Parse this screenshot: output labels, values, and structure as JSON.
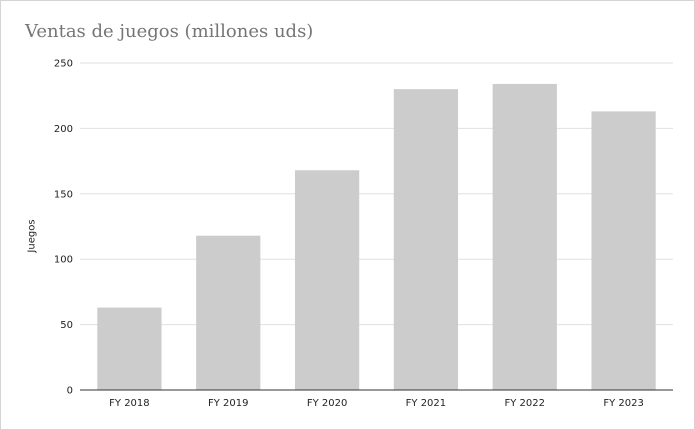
{
  "chart_data": {
    "type": "bar",
    "title": "Ventas de juegos (millones uds)",
    "xlabel": "",
    "ylabel": "Juegos",
    "categories": [
      "FY 2018",
      "FY 2019",
      "FY 2020",
      "FY 2021",
      "FY 2022",
      "FY 2023"
    ],
    "values": [
      63,
      118,
      168,
      230,
      234,
      213
    ],
    "ylim": [
      0,
      250
    ],
    "yticks": [
      0,
      50,
      100,
      150,
      200,
      250
    ],
    "grid": true,
    "legend": "none",
    "colors": {
      "bar": "#cccccc",
      "grid": "#e0e0e0",
      "axis": "#333333",
      "title": "#757575"
    }
  }
}
